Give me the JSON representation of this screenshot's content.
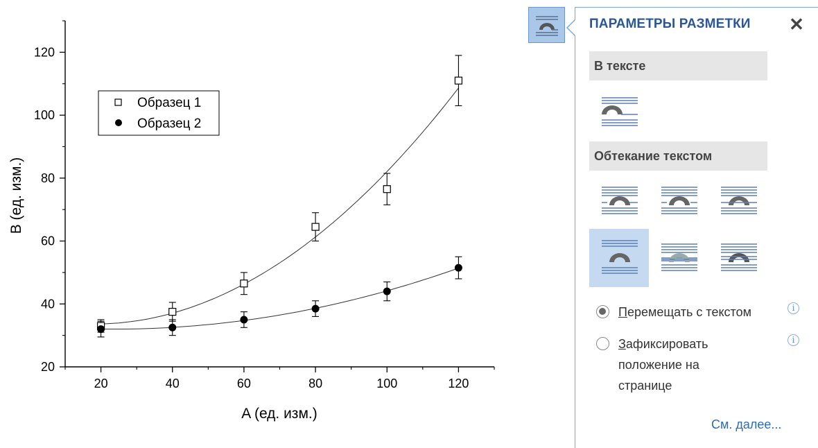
{
  "chart_data": {
    "type": "scatter",
    "xlabel": "A (ед. изм.)",
    "ylabel": "B (ед. изм.)",
    "xlim": [
      10,
      130
    ],
    "ylim": [
      20,
      130
    ],
    "x_ticks": [
      20,
      40,
      60,
      80,
      100,
      120
    ],
    "y_ticks": [
      20,
      40,
      60,
      80,
      100,
      120
    ],
    "legend_position": "upper-left",
    "series": [
      {
        "name": "Образец 1",
        "marker": "open-square",
        "x": [
          20,
          40,
          60,
          80,
          100,
          120
        ],
        "y": [
          33,
          37.5,
          46.5,
          64.5,
          76.5,
          111
        ],
        "err": [
          2,
          3,
          3.5,
          4.5,
          5,
          8
        ],
        "fit": "smooth-curve"
      },
      {
        "name": "Образец 2",
        "marker": "filled-circle",
        "x": [
          20,
          40,
          60,
          80,
          100,
          120
        ],
        "y": [
          32,
          32.5,
          35,
          38.5,
          44,
          51.5
        ],
        "err": [
          2.5,
          2.5,
          2.5,
          2.5,
          3,
          3.5
        ],
        "fit": "smooth-curve"
      }
    ]
  },
  "panel": {
    "title": "ПАРАМЕТРЫ РАЗМЕТКИ",
    "close_icon": "close-icon",
    "section_inline": "В тексте",
    "section_wrap": "Обтекание текстом",
    "options_selected_index": 3,
    "radio_move_prefix": "П",
    "radio_move_rest": "еремещать с текстом",
    "radio_fix_prefix": "З",
    "radio_fix_rest": "афиксировать",
    "radio_fix_line2": "положение на",
    "radio_fix_line3": "странице",
    "see_more": "См. далее..."
  }
}
